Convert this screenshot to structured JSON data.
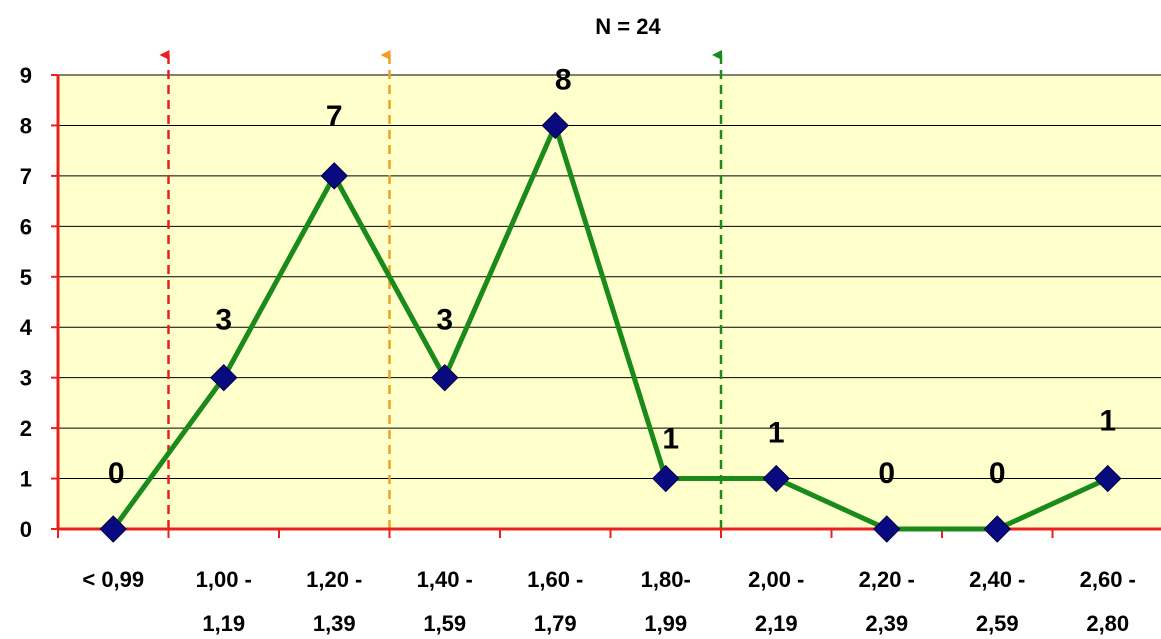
{
  "chart_data": {
    "type": "line",
    "title": "N = 24",
    "xlabel": "",
    "ylabel": "",
    "ylim": [
      0,
      9
    ],
    "yticks": [
      0,
      1,
      2,
      3,
      4,
      5,
      6,
      7,
      8,
      9
    ],
    "grid": true,
    "categories": [
      [
        "< 0,99",
        ""
      ],
      [
        "1,00 -",
        "1,19"
      ],
      [
        "1,20 -",
        "1,39"
      ],
      [
        "1,40 -",
        "1,59"
      ],
      [
        "1,60 -",
        "1,79"
      ],
      [
        "1,80-",
        "1,99"
      ],
      [
        "2,00 -",
        "2,19"
      ],
      [
        "2,20 -",
        "2,39"
      ],
      [
        "2,40 -",
        "2,59"
      ],
      [
        "2,60 -",
        "2,80"
      ]
    ],
    "series": [
      {
        "values": [
          0,
          3,
          7,
          3,
          8,
          1,
          1,
          0,
          0,
          1
        ],
        "line_color": "#1a8a1a",
        "marker_color": "#0a0a80",
        "marker": "diamond"
      }
    ],
    "data_labels": [
      "0",
      "3",
      "7",
      "3",
      "8",
      "1",
      "1",
      "0",
      "0",
      "1"
    ],
    "reference_lines": [
      {
        "after_category_index": 0,
        "color": "#e8201e",
        "style": "dashed-arrow"
      },
      {
        "after_category_index": 2,
        "color": "#f0a020",
        "style": "dashed-arrow"
      },
      {
        "after_category_index": 5,
        "color": "#1a8a1a",
        "style": "dashed-arrow"
      }
    ],
    "colors": {
      "plot_background": "#ffffcc",
      "axis": "#e8201e",
      "grid": "#000000"
    }
  }
}
